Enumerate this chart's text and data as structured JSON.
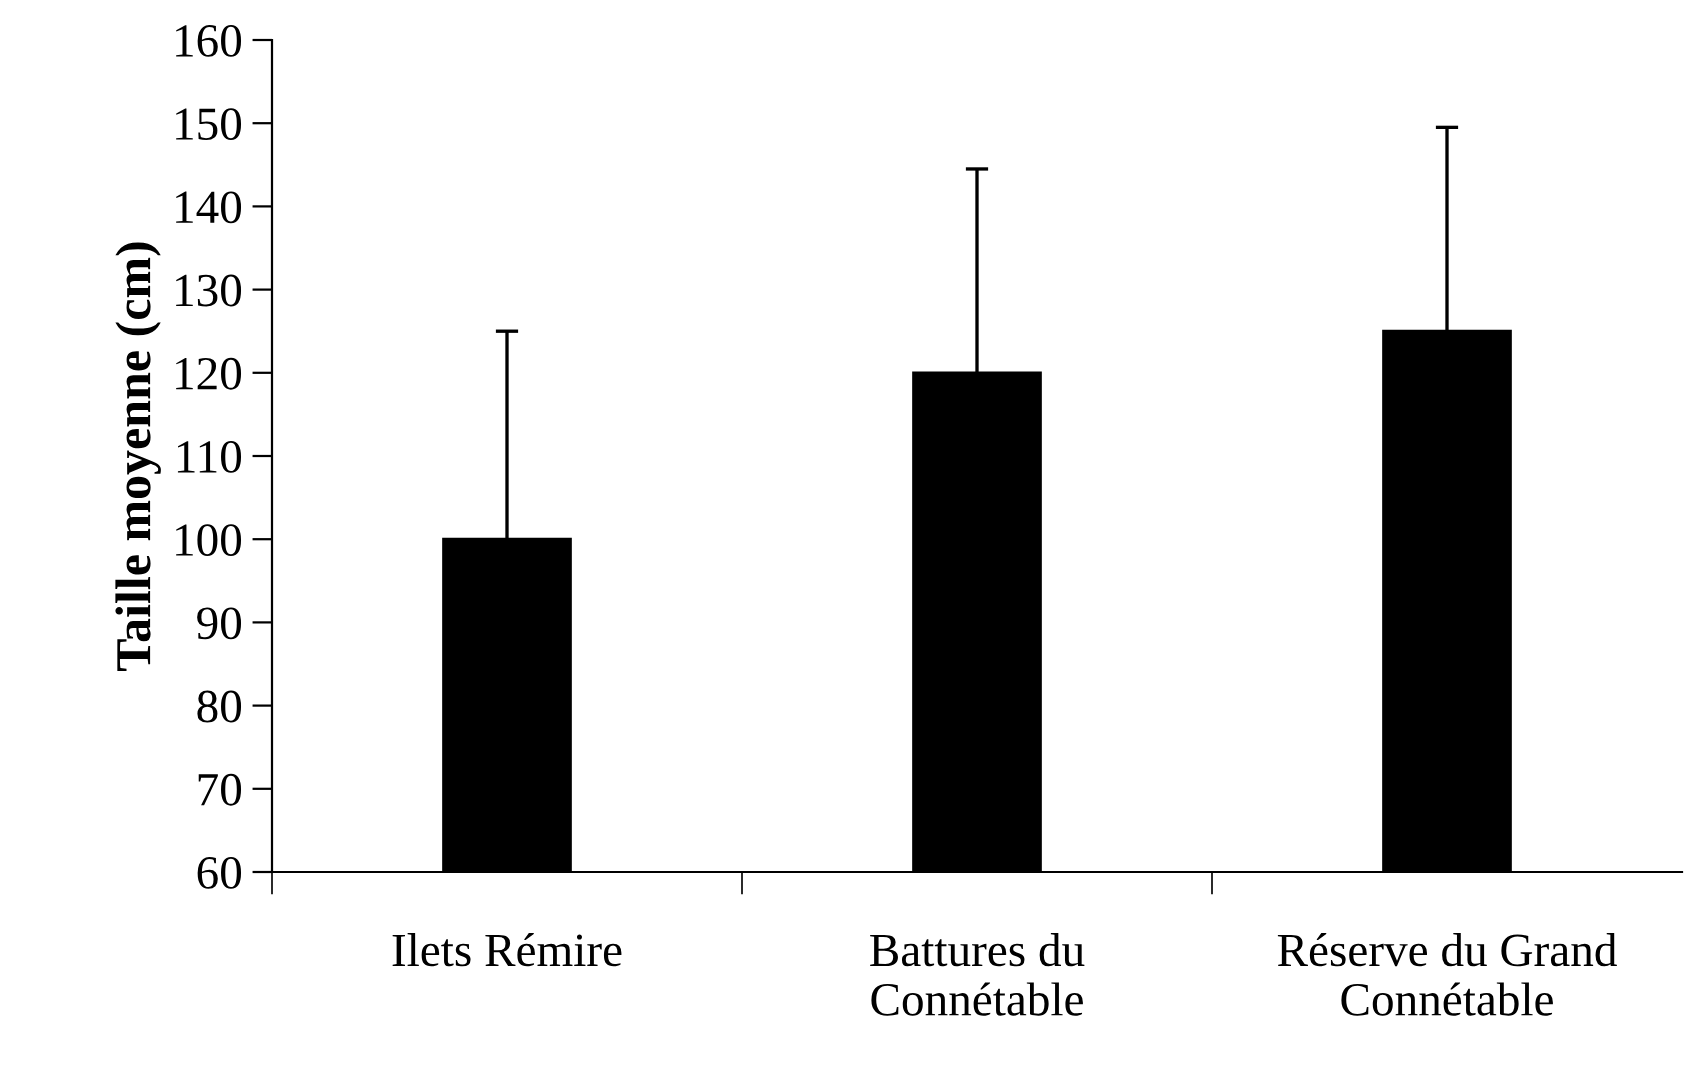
{
  "chart_data": {
    "type": "bar",
    "ylabel": "Taille moyenne (cm)",
    "categories": [
      "Ilets Rémire",
      "Battures du\nConnétable",
      "Réserve du Grand\nConnétable"
    ],
    "values": [
      100,
      120,
      125
    ],
    "errors": [
      25,
      24.5,
      24.5
    ],
    "color": "#000000",
    "ylim": [
      60,
      160
    ],
    "yticks": [
      60,
      70,
      80,
      90,
      100,
      110,
      120,
      130,
      140,
      150,
      160
    ],
    "grid": false
  }
}
